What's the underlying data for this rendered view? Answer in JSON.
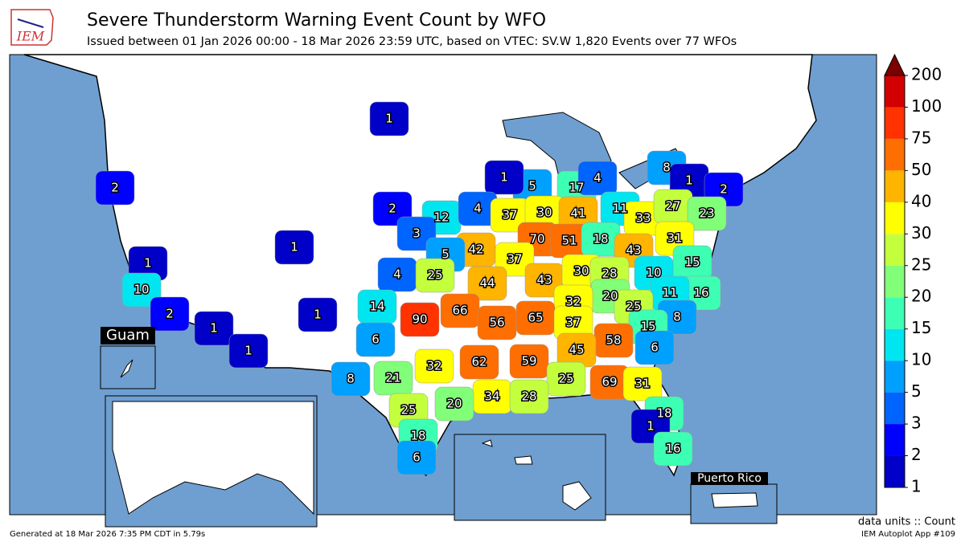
{
  "header": {
    "logo": "IEM",
    "title": "Severe Thunderstorm Warning Event Count by WFO",
    "subtitle": "Issued between 01 Jan 2026 00:00 - 18 Mar 2026 23:59 UTC, based on VTEC: SV.W   1,820 Events over 77 WFOs"
  },
  "chart_data": {
    "type": "choropleth",
    "values": [
      1,
      2,
      5,
      17,
      4,
      1,
      8,
      1,
      2,
      2,
      12,
      4,
      37,
      30,
      41,
      11,
      33,
      27,
      23,
      1,
      3,
      42,
      70,
      51,
      18,
      43,
      31,
      1,
      5,
      37,
      15,
      4,
      25,
      44,
      43,
      30,
      28,
      10,
      10,
      16,
      11,
      20,
      32,
      25,
      14,
      1,
      2,
      90,
      66,
      56,
      65,
      37,
      8,
      15,
      1,
      58,
      6,
      45,
      6,
      1,
      62,
      59,
      32,
      21,
      8,
      25,
      69,
      31,
      34,
      28,
      20,
      25,
      18,
      1,
      18,
      16,
      6
    ],
    "colorbar_ticks": [
      1,
      2,
      3,
      5,
      10,
      15,
      20,
      25,
      30,
      40,
      50,
      75,
      100,
      200
    ],
    "colors": [
      "#0000c8",
      "#0000ff",
      "#0064ff",
      "#00a0ff",
      "#00e6f0",
      "#3cffb4",
      "#82ff78",
      "#c3ff3c",
      "#ffff00",
      "#ffb400",
      "#ff6e00",
      "#ff3200",
      "#d20000"
    ],
    "over_color": "#7d0000",
    "units_label": "data units :: Count"
  },
  "insets": {
    "guam": "Guam",
    "puerto_rico": "Puerto Rico"
  },
  "footer": {
    "generated": "Generated at 18 Mar 2026 7:35 PM CDT in 5.79s",
    "app": "IEM Autoplot App #109"
  }
}
